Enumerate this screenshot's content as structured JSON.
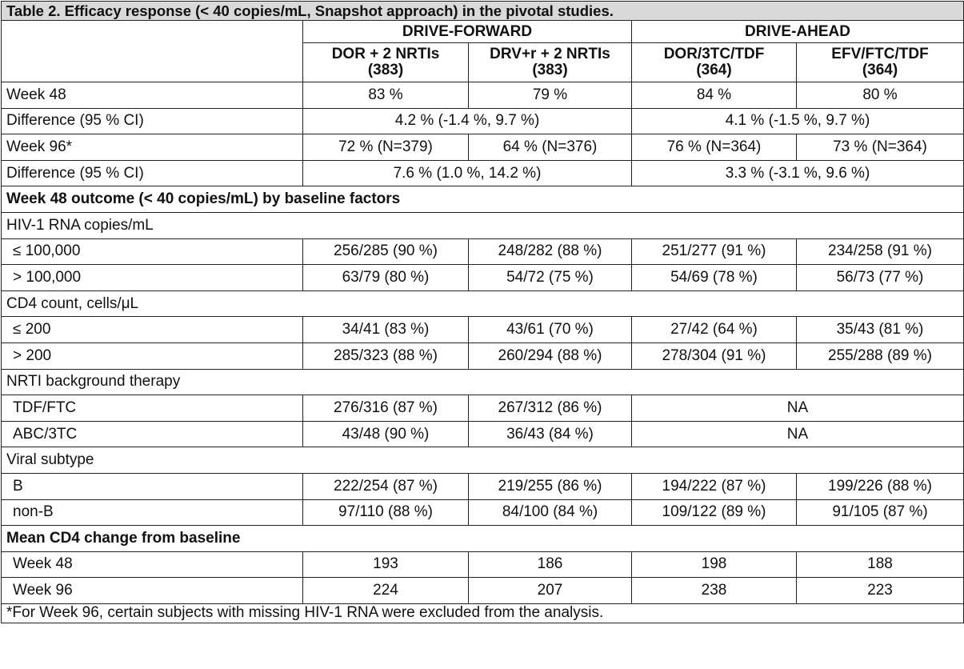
{
  "title": "Table 2. Efficacy response (< 40 copies/mL, Snapshot approach) in the pivotal studies.",
  "studies": [
    "DRIVE-FORWARD",
    "DRIVE-AHEAD"
  ],
  "arms": [
    {
      "name": "DOR + 2 NRTIs",
      "n": "(383)"
    },
    {
      "name": "DRV+r + 2 NRTIs",
      "n": "(383)"
    },
    {
      "name": "DOR/3TC/TDF",
      "n": "(364)"
    },
    {
      "name": "EFV/FTC/TDF",
      "n": "(364)"
    }
  ],
  "rows": [
    {
      "label": "Week 48",
      "cells": [
        "83 %",
        "79 %",
        "84 %",
        "80 %"
      ]
    },
    {
      "label": "Difference (95 % CI)",
      "merged": [
        "4.2 % (-1.4 %, 9.7 %)",
        "4.1 % (-1.5 %, 9.7 %)"
      ]
    },
    {
      "label": "Week 96*",
      "cells": [
        "72 % (N=379)",
        "64 % (N=376)",
        "76 % (N=364)",
        "73 % (N=364)"
      ]
    },
    {
      "label": "Difference (95 % CI)",
      "merged": [
        "7.6 % (1.0 %, 14.2 %)",
        "3.3 % (-3.1 %, 9.6 %)"
      ]
    },
    {
      "label": "Week 48 outcome (< 40 copies/mL) by baseline factors",
      "section": true
    },
    {
      "label": "HIV-1 RNA copies/mL",
      "group": true
    },
    {
      "label": "≤ 100,000",
      "indent": true,
      "cells": [
        "256/285 (90 %)",
        "248/282 (88 %)",
        "251/277 (91 %)",
        "234/258 (91 %)"
      ]
    },
    {
      "label": "> 100,000",
      "indent": true,
      "cells": [
        "63/79 (80 %)",
        "54/72 (75 %)",
        "54/69 (78 %)",
        "56/73 (77 %)"
      ]
    },
    {
      "label": "CD4 count, cells/μL",
      "group": true
    },
    {
      "label": "≤ 200",
      "indent": true,
      "cells": [
        "34/41 (83 %)",
        "43/61 (70 %)",
        "27/42 (64 %)",
        "35/43 (81 %)"
      ]
    },
    {
      "label": "> 200",
      "indent": true,
      "cells": [
        "285/323 (88 %)",
        "260/294 (88 %)",
        "278/304 (91 %)",
        "255/288 (89 %)"
      ]
    },
    {
      "label": "NRTI background therapy",
      "group": true
    },
    {
      "label": "TDF/FTC",
      "indent": true,
      "cells": [
        "276/316 (87 %)",
        "267/312 (86 %)"
      ],
      "ahead_merged": "NA"
    },
    {
      "label": "ABC/3TC",
      "indent": true,
      "cells": [
        "43/48 (90 %)",
        "36/43 (84 %)"
      ],
      "ahead_merged": "NA"
    },
    {
      "label": "Viral subtype",
      "group": true
    },
    {
      "label": "B",
      "indent": true,
      "cells": [
        "222/254 (87 %)",
        "219/255 (86 %)",
        "194/222 (87 %)",
        "199/226 (88 %)"
      ]
    },
    {
      "label": "non-B",
      "indent": true,
      "cells": [
        "97/110 (88 %)",
        "84/100 (84 %)",
        "109/122 (89 %)",
        "91/105 (87 %)"
      ]
    },
    {
      "label": "Mean CD4 change from baseline",
      "section": true
    },
    {
      "label": "Week 48",
      "indent": true,
      "cells": [
        "193",
        "186",
        "198",
        "188"
      ]
    },
    {
      "label": "Week 96",
      "indent": true,
      "cells": [
        "224",
        "207",
        "238",
        "223"
      ]
    }
  ],
  "footnote": "*For Week 96, certain subjects with missing HIV-1 RNA were excluded from the analysis.",
  "colors": {
    "title_bg": "#d9d9d9",
    "border": "#222222"
  }
}
